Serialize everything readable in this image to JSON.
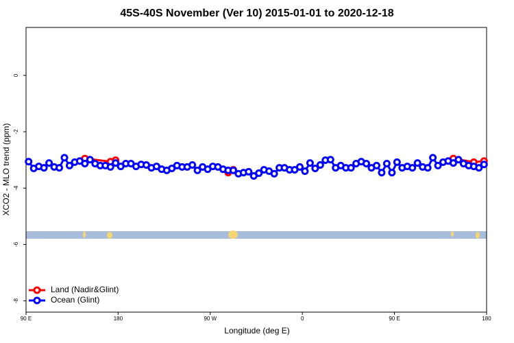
{
  "chart_data": {
    "type": "line",
    "title": "45S-40S November (Ver 10)   2015-01-01 to 2020-12-18",
    "x_label": "Longitude (deg E)",
    "y_label": "XCO2 - MLO trend (ppm)",
    "xlim": [
      90,
      540
    ],
    "xticks": [
      {
        "value": 90,
        "label": "90 E"
      },
      180,
      {
        "value": 270,
        "label": "90 W"
      },
      {
        "value": 360,
        "label": "0"
      },
      {
        "value": 450,
        "label": "90 E"
      },
      {
        "value": 540,
        "label": "180"
      }
    ],
    "ylim": [
      -8.4,
      1.7
    ],
    "yticks": [
      0,
      -2,
      -4,
      -6,
      -8
    ],
    "legend": "bottom-left",
    "series": [
      {
        "name": "Land (Nadir&Glint)",
        "color": "#ff0000",
        "x": [
          147.5,
          172.5,
          177.5,
          null,
          287.5,
          292.5,
          null,
          507.5,
          527.5,
          537.5
        ],
        "values": [
          -2.95,
          -3.06,
          -3.01,
          null,
          -3.45,
          -3.35,
          null,
          -2.95,
          -3.08,
          -3.04
        ]
      },
      {
        "name": "Ocean (Glint)",
        "color": "#0000ff",
        "x": [
          92.5,
          97.5,
          102.5,
          107.5,
          112.5,
          117.5,
          122.5,
          127.5,
          132.5,
          137.5,
          142.5,
          147.5,
          152.5,
          157.5,
          162.5,
          167.5,
          172.5,
          177.5,
          182.5,
          187.5,
          192.5,
          197.5,
          202.5,
          207.5,
          212.5,
          217.5,
          222.5,
          227.5,
          232.5,
          237.5,
          242.5,
          247.5,
          252.5,
          257.5,
          262.5,
          267.5,
          272.5,
          277.5,
          282.5,
          287.5,
          292.5,
          297.5,
          302.5,
          307.5,
          312.5,
          317.5,
          322.5,
          327.5,
          332.5,
          337.5,
          342.5,
          347.5,
          352.5,
          357.5,
          362.5,
          367.5,
          372.5,
          377.5,
          382.5,
          387.5,
          392.5,
          397.5,
          402.5,
          407.5,
          412.5,
          417.5,
          422.5,
          427.5,
          432.5,
          437.5,
          442.5,
          447.5,
          452.5,
          457.5,
          462.5,
          467.5,
          472.5,
          477.5,
          482.5,
          487.5,
          492.5,
          497.5,
          502.5,
          507.5,
          512.5,
          517.5,
          522.5,
          527.5,
          532.5,
          537.5
        ],
        "values": [
          -3.06,
          -3.3,
          -3.23,
          -3.28,
          -3.11,
          -3.25,
          -3.28,
          -2.92,
          -3.2,
          -3.08,
          -3.04,
          -3.13,
          -2.99,
          -3.13,
          -3.2,
          -3.2,
          -3.25,
          -3.11,
          -3.23,
          -3.13,
          -3.13,
          -3.23,
          -3.16,
          -3.18,
          -3.28,
          -3.23,
          -3.33,
          -3.37,
          -3.3,
          -3.2,
          -3.25,
          -3.25,
          -3.18,
          -3.37,
          -3.25,
          -3.33,
          -3.23,
          -3.25,
          -3.33,
          -3.37,
          -3.37,
          -3.49,
          -3.45,
          -3.42,
          -3.57,
          -3.47,
          -3.35,
          -3.4,
          -3.49,
          -3.28,
          -3.28,
          -3.35,
          -3.35,
          -3.25,
          -3.4,
          -3.11,
          -3.3,
          -3.18,
          -3.01,
          -2.99,
          -3.28,
          -3.2,
          -3.28,
          -3.28,
          -3.13,
          -3.06,
          -3.13,
          -3.28,
          -3.2,
          -3.45,
          -3.13,
          -3.45,
          -3.08,
          -3.28,
          -3.23,
          -3.28,
          -3.11,
          -3.25,
          -3.28,
          -2.92,
          -3.2,
          -3.08,
          -3.04,
          -3.11,
          -2.99,
          -3.13,
          -3.2,
          -3.23,
          -3.28,
          -3.16
        ]
      }
    ]
  }
}
